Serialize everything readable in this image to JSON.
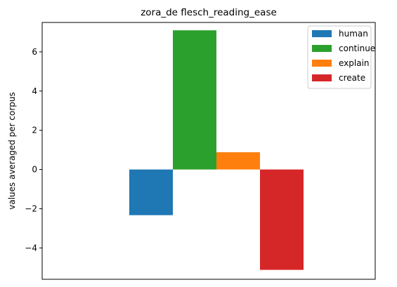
{
  "chart_data": {
    "type": "bar",
    "title": "zora_de flesch_reading_ease",
    "ylabel": "values averaged per corpus",
    "xlabel": "",
    "ylim": [
      -5.6,
      7.5
    ],
    "yticks": [
      -4,
      -2,
      0,
      2,
      4,
      6
    ],
    "ytick_labels": [
      "−4",
      "−2",
      "0",
      "2",
      "4",
      "6"
    ],
    "grid": false,
    "legend_position": "top-right",
    "series": [
      {
        "name": "human",
        "value": -2.33,
        "color": "#1f77b4"
      },
      {
        "name": "continue",
        "value": 7.1,
        "color": "#2ca02c"
      },
      {
        "name": "explain",
        "value": 0.88,
        "color": "#ff7f0e"
      },
      {
        "name": "create",
        "value": -5.12,
        "color": "#d62728"
      }
    ]
  }
}
